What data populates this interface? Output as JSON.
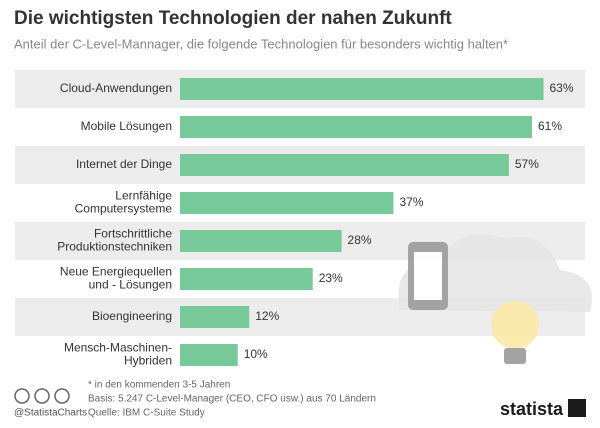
{
  "chart_data": {
    "type": "bar",
    "orientation": "horizontal",
    "title": "Die wichtigsten Technologien der nahen Zukunft",
    "subtitle": "Anteil der C-Level-Mannager, die folgende Technologien für besonders wichtig halten*",
    "categories": [
      "Cloud-Anwendungen",
      "Mobile Lösungen",
      "Internet der Dinge",
      "Lernfähige\nComputersysteme",
      "Fortschrittliche\nProduktionstechniken",
      "Neue Energiequellen\nund - Lösungen",
      "Bioengineering",
      "Mensch-Maschinen-\nHybriden"
    ],
    "values": [
      63,
      61,
      57,
      37,
      28,
      23,
      12,
      10
    ],
    "value_labels": [
      "63%",
      "61%",
      "57%",
      "37%",
      "28%",
      "23%",
      "12%",
      "10%"
    ],
    "color": "#78c99a",
    "notes": [
      "* in den kommenden 3-5 Jahren",
      "Basis: 5.247 C-Level-Manager (CEO, CFO usw.) aus 70 Ländern",
      "Quelle: IBM C-Suite Study"
    ],
    "handle": "@StatistaCharts",
    "brand": "statista"
  }
}
